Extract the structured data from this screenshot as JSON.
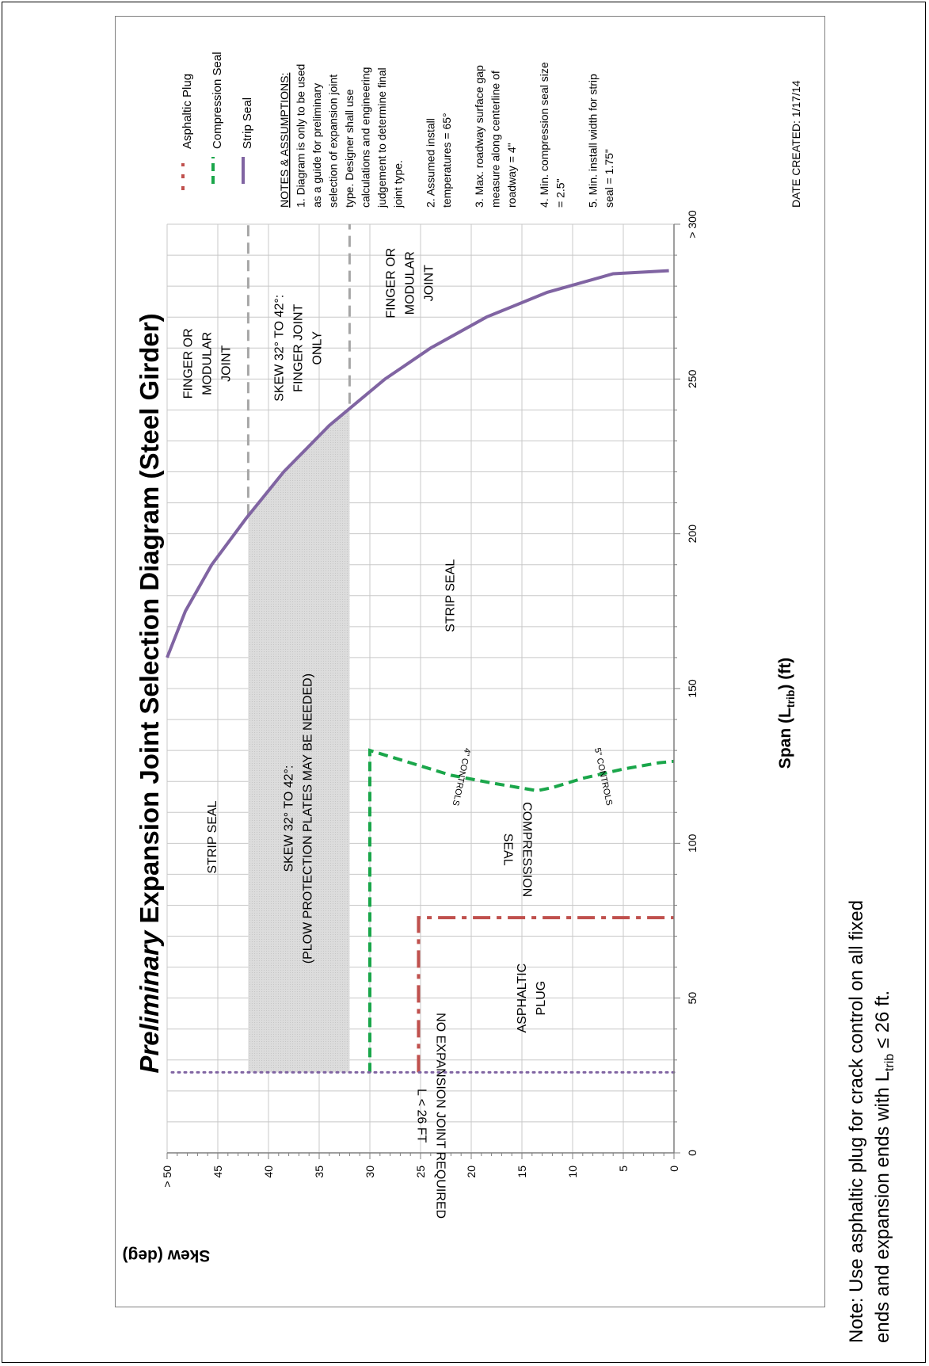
{
  "chart_data": {
    "type": "line",
    "title_italic": "Preliminary",
    "title_rest": " Expansion Joint Selection Diagram (Steel Girder)",
    "xlabel_prefix": "Span (L",
    "xlabel_sub": "trib",
    "xlabel_suffix": ") (ft)",
    "ylabel": "Skew (deg)",
    "xlim": [
      0,
      300
    ],
    "ylim": [
      0,
      50
    ],
    "x_ticks": [
      {
        "value": 0,
        "label": "0"
      },
      {
        "value": 50,
        "label": "50"
      },
      {
        "value": 100,
        "label": "100"
      },
      {
        "value": 150,
        "label": "150"
      },
      {
        "value": 200,
        "label": "200"
      },
      {
        "value": 250,
        "label": "250"
      },
      {
        "value": 300,
        "label": "> 300"
      }
    ],
    "y_ticks": [
      {
        "value": 0,
        "label": "0"
      },
      {
        "value": 5,
        "label": "5"
      },
      {
        "value": 10,
        "label": "10"
      },
      {
        "value": 15,
        "label": "15"
      },
      {
        "value": 20,
        "label": "20"
      },
      {
        "value": 25,
        "label": "25"
      },
      {
        "value": 30,
        "label": "30"
      },
      {
        "value": 35,
        "label": "35"
      },
      {
        "value": 40,
        "label": "40"
      },
      {
        "value": 45,
        "label": "45"
      },
      {
        "value": 50,
        "label": "> 50"
      }
    ],
    "grid": true,
    "legend_position": "top-right",
    "series": [
      {
        "name": "Asphaltic Plug",
        "color": "#c0504d",
        "style": "dash-dot",
        "points": [
          [
            26,
            25.2
          ],
          [
            76,
            25.2
          ],
          [
            76,
            0
          ]
        ]
      },
      {
        "name": "Compression Seal",
        "color": "#1aa64a",
        "style": "dashed",
        "points": [
          [
            26,
            30
          ],
          [
            130,
            30
          ],
          [
            126,
            26
          ],
          [
            122,
            22
          ],
          [
            119.5,
            18
          ],
          [
            117,
            13.5
          ],
          [
            118,
            12
          ],
          [
            121,
            9
          ],
          [
            124,
            5
          ],
          [
            126,
            1.5
          ],
          [
            126.5,
            0
          ]
        ]
      },
      {
        "name": "Strip Seal",
        "color": "#8064a2",
        "style": "solid",
        "points": [
          [
            160,
            50
          ],
          [
            175,
            48.2
          ],
          [
            190,
            45.6
          ],
          [
            205,
            42.2
          ],
          [
            220,
            38.5
          ],
          [
            235,
            34
          ],
          [
            250,
            28.5
          ],
          [
            260,
            24
          ],
          [
            270,
            18.5
          ],
          [
            278,
            12.5
          ],
          [
            284,
            6
          ],
          [
            285,
            0.5
          ]
        ]
      },
      {
        "name": "",
        "color": "#8064a2",
        "style": "dotted",
        "points": [
          [
            26,
            0
          ],
          [
            26,
            50
          ]
        ]
      }
    ],
    "shaded_region": {
      "skew_range": [
        32,
        42
      ],
      "color": "#d9d9d9"
    },
    "skew_guides": [
      {
        "skew": 42,
        "span_range": [
          206,
          300
        ],
        "color": "#a6a6a6"
      },
      {
        "skew": 32,
        "span_range": [
          242,
          300
        ],
        "color": "#a6a6a6"
      }
    ],
    "regions": [
      {
        "lines": [
          "NO EXPANSION JOINT REQUIRED",
          "L < 26 FT"
        ],
        "x": 12,
        "y": 24,
        "flipped": true
      },
      {
        "lines": [
          "ASPHALTIC",
          "PLUG"
        ],
        "x": 50,
        "y": 14,
        "flipped": false
      },
      {
        "lines": [
          "COMPRESSION",
          "SEAL"
        ],
        "x": 98,
        "y": 15.5,
        "flipped": true
      },
      {
        "lines": [
          "STRIP SEAL"
        ],
        "x": 102,
        "y": 45.5,
        "flipped": false
      },
      {
        "lines": [
          "SKEW 32° TO 42°:",
          "(PLOW PROTECTION PLATES MAY BE NEEDED)"
        ],
        "x": 108,
        "y": 37,
        "flipped": false
      },
      {
        "lines": [
          "STRIP SEAL"
        ],
        "x": 180,
        "y": 22,
        "flipped": false
      },
      {
        "lines": [
          "FINGER OR",
          "MODULAR",
          "JOINT"
        ],
        "x": 255,
        "y": 46,
        "flipped": false
      },
      {
        "lines": [
          "SKEW 32° TO 42°:",
          "FINGER JOINT",
          "ONLY"
        ],
        "x": 260,
        "y": 37,
        "flipped": false
      },
      {
        "lines": [
          "FINGER OR",
          "MODULAR",
          "JOINT"
        ],
        "x": 281,
        "y": 26,
        "flipped": false
      }
    ],
    "annotations": [
      {
        "text": "4\" CONTROLS",
        "x": 121.5,
        "y": 21,
        "angle": 12
      },
      {
        "text": "5\" CONTROLS",
        "x": 121.5,
        "y": 7,
        "angle": -12
      }
    ]
  },
  "notes": {
    "heading": "NOTES & ASSUMPTIONS:",
    "items": [
      [
        "1. Diagram is only to be used",
        "as a guide for preliminary",
        "selection of expansion joint",
        "type.  Designer shall use",
        "calculations and engineering",
        "judgement to determine final",
        "joint type."
      ],
      [
        "2. Assumed install",
        "temperatures = 65°"
      ],
      [
        "3. Max. roadway surface gap",
        "measure along centerline of",
        "roadway = 4\""
      ],
      [
        "4. Min. compression seal size",
        "= 2.5\""
      ],
      [
        "5. Min. install width for strip",
        "seal = 1.75\""
      ]
    ],
    "date": "DATE CREATED: 1/17/14"
  },
  "footer": {
    "line1": "Note: Use asphaltic plug for crack control on all fixed",
    "line2_prefix": "ends and expansion ends with L",
    "line2_sub": "trib",
    "line2_suffix": " ≤ 26 ft."
  }
}
